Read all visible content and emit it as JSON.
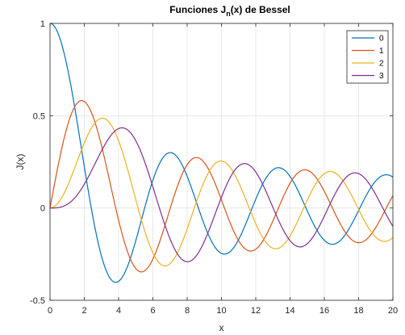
{
  "chart_data": {
    "type": "line",
    "title_main": "Funciones J",
    "title_sub": "n",
    "title_rest": "(x) de Bessel",
    "xlabel": "x",
    "ylabel": "J(x)",
    "xlim": [
      0,
      20
    ],
    "ylim": [
      -0.5,
      1
    ],
    "x_ticks": [
      0,
      2,
      4,
      6,
      8,
      10,
      12,
      14,
      16,
      18,
      20
    ],
    "x_tick_labels": [
      "0",
      "2",
      "4",
      "6",
      "8",
      "10",
      "12",
      "14",
      "16",
      "18",
      "20"
    ],
    "y_ticks": [
      -0.5,
      0,
      0.5,
      1
    ],
    "y_tick_labels": [
      "-0.5",
      "0",
      "0.5",
      "1"
    ],
    "grid": true,
    "legend_position": "top-right",
    "x": [
      0,
      1,
      2,
      3,
      4,
      5,
      6,
      7,
      8,
      9,
      10,
      11,
      12,
      13,
      14,
      15,
      16,
      17,
      18,
      19,
      20
    ],
    "series": [
      {
        "name": "0",
        "color": "#0072BD",
        "function": "Bessel J0",
        "values": [
          1.0,
          0.765,
          0.224,
          -0.26,
          -0.397,
          -0.178,
          0.151,
          0.3,
          0.172,
          -0.09,
          -0.246,
          -0.171,
          0.048,
          0.207,
          0.171,
          -0.014,
          -0.175,
          -0.17,
          -0.013,
          0.147,
          0.167
        ]
      },
      {
        "name": "1",
        "color": "#D95319",
        "function": "Bessel J1",
        "values": [
          0.0,
          0.44,
          0.577,
          0.339,
          -0.066,
          -0.328,
          -0.277,
          -0.005,
          0.235,
          0.245,
          0.043,
          -0.177,
          -0.223,
          -0.07,
          0.133,
          0.205,
          0.09,
          -0.098,
          -0.188,
          -0.106,
          0.067
        ]
      },
      {
        "name": "2",
        "color": "#EDB120",
        "function": "Bessel J2",
        "values": [
          0.0,
          0.115,
          0.353,
          0.486,
          0.364,
          0.047,
          -0.243,
          -0.301,
          -0.113,
          0.145,
          0.255,
          0.139,
          -0.085,
          -0.218,
          -0.152,
          0.041,
          0.186,
          0.158,
          -0.008,
          -0.158,
          -0.16
        ]
      },
      {
        "name": "3",
        "color": "#7E2F8E",
        "function": "Bessel J3",
        "values": [
          0.0,
          0.02,
          0.129,
          0.309,
          0.43,
          0.365,
          0.115,
          -0.168,
          -0.291,
          -0.181,
          0.058,
          0.227,
          0.195,
          -0.003,
          -0.177,
          -0.194,
          -0.044,
          0.135,
          0.186,
          0.072,
          -0.099
        ]
      }
    ]
  }
}
